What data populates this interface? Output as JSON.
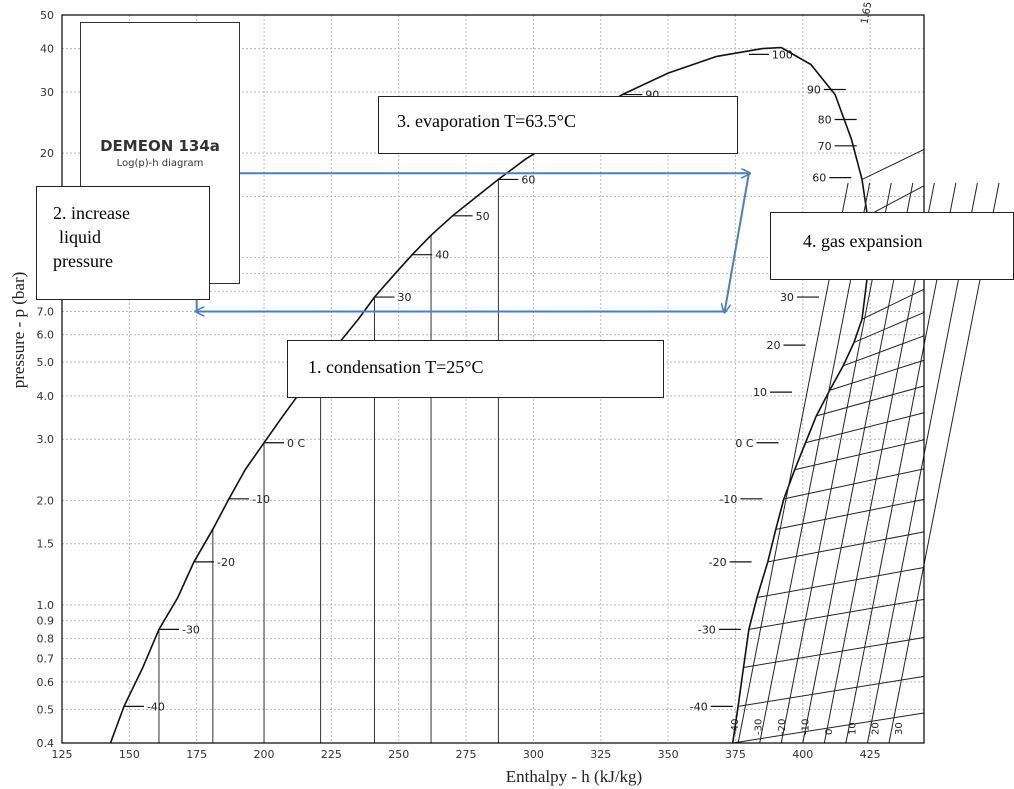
{
  "chart_data": {
    "type": "line",
    "title": "DEMEON 134a",
    "subtitle": "Log(p)-h diagram",
    "xlabel": "Enthalpy - h (kJ/kg)",
    "ylabel": "pressure - p (bar)",
    "xlim": [
      125,
      445
    ],
    "ylim": [
      0.4,
      50
    ],
    "yscale": "log",
    "grid": true,
    "x_ticks": [
      "125",
      "150",
      "175",
      "200",
      "225",
      "250",
      "275",
      "300",
      "325",
      "350",
      "375",
      "400",
      "425"
    ],
    "y_ticks": [
      "0.4",
      "0.5",
      "0.6",
      "0.7",
      "0.8",
      "0.9",
      "1.0",
      "1.5",
      "2.0",
      "3.0",
      "4.0",
      "5.0",
      "6.0",
      "7.0",
      "20",
      "30",
      "40",
      "50"
    ],
    "y_tick_values": [
      0.4,
      0.5,
      0.6,
      0.7,
      0.8,
      0.9,
      1.0,
      1.5,
      2.0,
      3.0,
      4.0,
      5.0,
      6.0,
      7.0,
      20,
      30,
      40,
      50
    ],
    "saturated_liquid": {
      "x": [
        143,
        148,
        155,
        161,
        168,
        174,
        181,
        187,
        193,
        200,
        207,
        214,
        221,
        228,
        235,
        241,
        248,
        255,
        262,
        270,
        279,
        287,
        297,
        309,
        320,
        333,
        350,
        368,
        385,
        392
      ],
      "y": [
        0.4,
        0.51,
        0.66,
        0.85,
        1.05,
        1.33,
        1.65,
        2.02,
        2.45,
        2.93,
        3.5,
        4.15,
        4.88,
        5.7,
        6.65,
        7.7,
        8.87,
        10.2,
        11.6,
        13.2,
        15.0,
        16.8,
        19.2,
        22.0,
        25.5,
        29.5,
        34.0,
        38.0,
        40.0,
        40.3
      ]
    },
    "saturated_vapor": {
      "x": [
        374,
        376,
        378,
        380,
        383,
        387,
        390,
        393,
        397,
        401,
        405,
        410,
        415,
        419,
        422,
        424,
        424,
        422,
        418,
        412,
        403,
        392
      ],
      "y": [
        0.4,
        0.51,
        0.66,
        0.85,
        1.05,
        1.33,
        1.65,
        2.02,
        2.45,
        2.93,
        3.5,
        4.15,
        4.88,
        5.7,
        6.65,
        8.87,
        13.2,
        16.8,
        22.0,
        29.5,
        36.0,
        40.3
      ]
    },
    "liquid_labels": [
      {
        "text": "-40",
        "x": 148,
        "y": 0.51
      },
      {
        "text": "-30",
        "x": 161,
        "y": 0.85
      },
      {
        "text": "-20",
        "x": 174,
        "y": 1.33
      },
      {
        "text": "-10",
        "x": 187,
        "y": 2.02
      },
      {
        "text": "0 C",
        "x": 200,
        "y": 2.93
      },
      {
        "text": "30",
        "x": 241,
        "y": 7.7
      },
      {
        "text": "40",
        "x": 255,
        "y": 10.2
      },
      {
        "text": "50",
        "x": 270,
        "y": 13.2
      },
      {
        "text": "60",
        "x": 287,
        "y": 16.8
      },
      {
        "text": "90",
        "x": 333,
        "y": 29.5
      },
      {
        "text": "100",
        "x": 380,
        "y": 38.5
      }
    ],
    "vapor_labels": [
      {
        "text": "-40",
        "x": 374,
        "y": 0.51
      },
      {
        "text": "-30",
        "x": 377,
        "y": 0.85
      },
      {
        "text": "-20",
        "x": 381,
        "y": 1.33
      },
      {
        "text": "-10",
        "x": 385,
        "y": 2.02
      },
      {
        "text": "0 C",
        "x": 391,
        "y": 2.93
      },
      {
        "text": "10",
        "x": 396,
        "y": 4.1
      },
      {
        "text": "20",
        "x": 401,
        "y": 5.6
      },
      {
        "text": "30",
        "x": 406,
        "y": 7.7
      },
      {
        "text": "60",
        "x": 418,
        "y": 17.0
      },
      {
        "text": "70",
        "x": 420,
        "y": 21.0
      },
      {
        "text": "80",
        "x": 420,
        "y": 25.0
      },
      {
        "text": "90",
        "x": 416,
        "y": 30.5
      }
    ],
    "isentrope_labels": [
      "-40",
      "-30",
      "-20",
      "-10",
      "0",
      "10",
      "20",
      "30"
    ],
    "corner_label": "1.65",
    "cycle": {
      "points": [
        {
          "x": 371,
          "y": 7.0
        },
        {
          "x": 175,
          "y": 7.0
        },
        {
          "x": 175,
          "y": 17.5
        },
        {
          "x": 380,
          "y": 17.5
        }
      ],
      "color": "#4a7fc0"
    },
    "annotations": [
      {
        "id": "evaporation",
        "text": "3. evaporation T=63.5°C"
      },
      {
        "id": "increase",
        "lines": [
          "2. increase",
          "liquid",
          "pressure"
        ]
      },
      {
        "id": "gas",
        "text": "4. gas expansion"
      },
      {
        "id": "condensation",
        "text": "1. condensation T=25°C"
      }
    ]
  }
}
